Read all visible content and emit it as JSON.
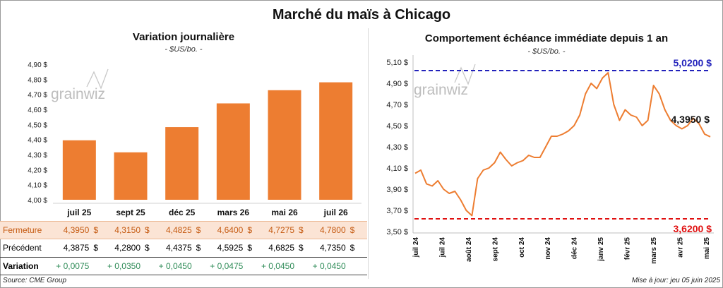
{
  "title": "Marché du maïs à Chicago",
  "left": {
    "title": "Variation journalière",
    "subtitle": "- $US/bo. -",
    "watermark": "grainwiz",
    "y_tick_labels": [
      "4,00 $",
      "4,10 $",
      "4,20 $",
      "4,30 $",
      "4,40 $",
      "4,50 $",
      "4,60 $",
      "4,70 $",
      "4,80 $",
      "4,90 $"
    ],
    "bar_color": "#ed7d31",
    "table": {
      "row_labels": {
        "close": "Fermeture",
        "previous": "Précédent",
        "change": "Variation"
      },
      "close": [
        "4,3950",
        "4,3150",
        "4,4825",
        "4,6400",
        "4,7275",
        "4,7800"
      ],
      "previous": [
        "4,3875",
        "4,2800",
        "4,4375",
        "4,5925",
        "4,6825",
        "4,7350"
      ],
      "change": [
        "+ 0,0075",
        "+ 0,0350",
        "+ 0,0450",
        "+ 0,0475",
        "+ 0,0450",
        "+ 0,0450"
      ],
      "currency": "$"
    }
  },
  "right": {
    "title": "Comportement échéance immédiate depuis 1 an",
    "subtitle": "- $US/bo. -",
    "watermark": "grainwiz",
    "y_tick_labels": [
      "3,50 $",
      "3,70 $",
      "3,90 $",
      "4,10 $",
      "4,30 $",
      "4,50 $",
      "4,70 $",
      "4,90 $",
      "5,10 $"
    ],
    "max_label": "5,0200 $",
    "min_label": "3,6200 $",
    "last_label": "4,3950 $",
    "line_color": "#ed7d31",
    "max_color": "#2222bb",
    "min_color": "#e01010"
  },
  "footer": {
    "source": "Source: CME Group",
    "updated": "Mise à jour: jeu 05 juin 2025"
  },
  "chart_data": [
    {
      "type": "bar",
      "title": "Variation journalière",
      "subtitle": "- $US/bo. -",
      "categories": [
        "juil 25",
        "sept 25",
        "déc 25",
        "mars 26",
        "mai 26",
        "juil 26"
      ],
      "values": [
        4.395,
        4.315,
        4.4825,
        4.64,
        4.7275,
        4.78
      ],
      "ylim": [
        4.0,
        4.9
      ],
      "grid": false
    },
    {
      "type": "line",
      "title": "Comportement échéance immédiate depuis 1 an",
      "subtitle": "- $US/bo. -",
      "x_labels": [
        "juil 24",
        "juil 24",
        "août 24",
        "sept 24",
        "oct 24",
        "nov 24",
        "déc 24",
        "janv 25",
        "févr 25",
        "mars 25",
        "avr 25",
        "mai 25"
      ],
      "x": [
        "2024-06-05",
        "2024-06-12",
        "2024-06-19",
        "2024-06-26",
        "2024-07-03",
        "2024-07-10",
        "2024-07-17",
        "2024-07-24",
        "2024-07-31",
        "2024-08-07",
        "2024-08-14",
        "2024-08-21",
        "2024-08-28",
        "2024-09-04",
        "2024-09-11",
        "2024-09-18",
        "2024-09-25",
        "2024-10-02",
        "2024-10-09",
        "2024-10-16",
        "2024-10-23",
        "2024-10-30",
        "2024-11-06",
        "2024-11-13",
        "2024-11-20",
        "2024-11-27",
        "2024-12-04",
        "2024-12-11",
        "2024-12-18",
        "2024-12-25",
        "2025-01-01",
        "2025-01-08",
        "2025-01-15",
        "2025-01-22",
        "2025-01-29",
        "2025-02-05",
        "2025-02-12",
        "2025-02-19",
        "2025-02-26",
        "2025-03-05",
        "2025-03-12",
        "2025-03-19",
        "2025-03-26",
        "2025-04-02",
        "2025-04-09",
        "2025-04-16",
        "2025-04-23",
        "2025-04-30",
        "2025-05-07",
        "2025-05-14",
        "2025-05-21",
        "2025-05-28",
        "2025-06-05"
      ],
      "values": [
        4.05,
        4.08,
        3.95,
        3.93,
        3.98,
        3.9,
        3.86,
        3.88,
        3.8,
        3.7,
        3.65,
        4.0,
        4.08,
        4.1,
        4.15,
        4.25,
        4.18,
        4.12,
        4.15,
        4.17,
        4.22,
        4.2,
        4.2,
        4.3,
        4.4,
        4.4,
        4.42,
        4.45,
        4.5,
        4.6,
        4.8,
        4.9,
        4.85,
        4.95,
        5.0,
        4.7,
        4.55,
        4.65,
        4.6,
        4.58,
        4.5,
        4.55,
        4.88,
        4.8,
        4.65,
        4.55,
        4.5,
        4.47,
        4.5,
        4.57,
        4.52,
        4.42,
        4.395
      ],
      "ylim": [
        3.5,
        5.1
      ],
      "reference_lines": [
        {
          "label": "5,0200 $",
          "value": 5.02
        },
        {
          "label": "3,6200 $",
          "value": 3.62
        }
      ],
      "last_value_label": "4,3950 $",
      "grid": false
    }
  ]
}
